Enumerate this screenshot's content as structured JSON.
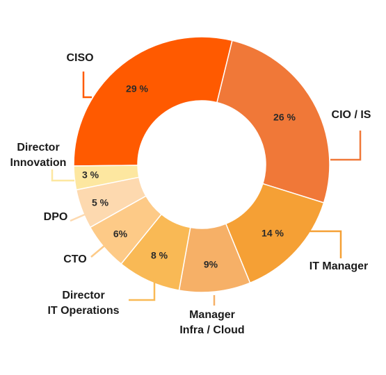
{
  "chart_data": {
    "type": "pie",
    "variant": "donut",
    "slices": [
      {
        "name": "CISO",
        "lines": [
          "CISO"
        ],
        "value": 29,
        "label": "29 %",
        "color": "#FF5A00"
      },
      {
        "name": "CIO / IS",
        "lines": [
          "CIO / IS"
        ],
        "value": 26,
        "label": "26 %",
        "color": "#F07838"
      },
      {
        "name": "IT Manager",
        "lines": [
          "IT Manager"
        ],
        "value": 14,
        "label": "14 %",
        "color": "#F5A035"
      },
      {
        "name": "Manager Infra / Cloud",
        "lines": [
          "Manager",
          "Infra / Cloud"
        ],
        "value": 9,
        "label": "9%",
        "color": "#F6B067"
      },
      {
        "name": "Director IT Operations",
        "lines": [
          "Director",
          "IT Operations"
        ],
        "value": 8,
        "label": "8 %",
        "color": "#F9B955"
      },
      {
        "name": "CTO",
        "lines": [
          "CTO"
        ],
        "value": 6,
        "label": "6%",
        "color": "#FDCA87"
      },
      {
        "name": "DPO",
        "lines": [
          "DPO"
        ],
        "value": 5,
        "label": "5 %",
        "color": "#FDD9AF"
      },
      {
        "name": "Director Innovation",
        "lines": [
          "Director",
          "Innovation"
        ],
        "value": 3,
        "label": "3 %",
        "color": "#FDE7A0"
      }
    ]
  }
}
